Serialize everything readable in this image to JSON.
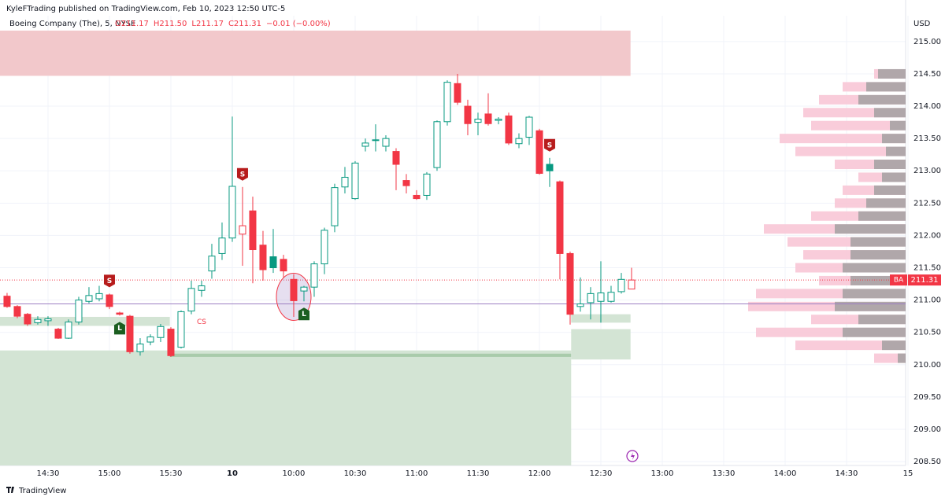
{
  "chart_data": {
    "type": "candlestick",
    "publisher": "KyleFTrading published on TradingView.com, Feb 10, 2023 12:50 UTC-5",
    "symbol": "Boeing Company (The), 5, NYSE",
    "ohlc_labels": [
      "O211.17",
      "H211.50",
      "L211.17",
      "C211.31",
      "−0.01 (−0.00%)"
    ],
    "currency": "USD",
    "ticker": "BA",
    "last_price": 211.31,
    "footer": "TradingView",
    "open": [
      211.06,
      210.9,
      210.78,
      210.65,
      210.68,
      210.55,
      210.41,
      210.66,
      210.98,
      211.02,
      211.08,
      210.8,
      210.75,
      210.2,
      210.35,
      210.42,
      210.55,
      210.27,
      210.83,
      211.15,
      211.45,
      211.72,
      211.96,
      212.02,
      212.38,
      211.85,
      211.67,
      211.63,
      211.32,
      211.14,
      211.2,
      211.56,
      212.15,
      212.75,
      212.57,
      213.38,
      213.47,
      213.38,
      213.3,
      212.85,
      212.62,
      212.62,
      213.05,
      213.76,
      214.35,
      214.0,
      213.75,
      213.88,
      213.78,
      213.85,
      213.42,
      213.52,
      213.62,
      213.1,
      212.83,
      211.72,
      210.9,
      210.96,
      210.98,
      210.98,
      211.13,
      211.17
    ],
    "high": [
      211.11,
      210.92,
      210.8,
      210.75,
      210.75,
      210.57,
      210.7,
      211.05,
      211.2,
      211.22,
      211.1,
      210.82,
      210.77,
      210.41,
      210.47,
      210.63,
      210.58,
      210.84,
      211.3,
      211.3,
      211.87,
      212.2,
      213.84,
      212.75,
      212.6,
      212.07,
      212.1,
      211.7,
      211.4,
      211.22,
      211.6,
      212.12,
      212.8,
      213.06,
      213.15,
      213.5,
      213.72,
      213.55,
      213.35,
      212.95,
      212.7,
      212.98,
      213.78,
      214.4,
      214.5,
      214.1,
      213.9,
      214.2,
      213.83,
      213.9,
      213.58,
      213.85,
      213.65,
      213.2,
      212.85,
      211.75,
      211.35,
      211.2,
      211.6,
      211.22,
      211.42,
      211.5
    ],
    "low": [
      210.88,
      210.72,
      210.6,
      210.62,
      210.6,
      210.4,
      210.4,
      210.62,
      210.95,
      210.98,
      210.86,
      210.76,
      210.17,
      210.14,
      210.3,
      210.35,
      210.12,
      210.25,
      210.78,
      211.05,
      211.33,
      211.62,
      211.9,
      211.53,
      211.26,
      211.3,
      211.42,
      211.35,
      210.74,
      210.98,
      211.05,
      211.4,
      212.05,
      212.65,
      212.55,
      213.3,
      213.3,
      213.3,
      212.7,
      212.65,
      212.55,
      212.55,
      213.0,
      213.7,
      214.02,
      213.55,
      213.55,
      213.7,
      213.72,
      213.4,
      213.35,
      213.4,
      212.94,
      212.75,
      211.32,
      210.62,
      210.82,
      210.7,
      210.65,
      210.96,
      211.1,
      211.17
    ],
    "close": [
      210.9,
      210.75,
      210.63,
      210.7,
      210.71,
      210.41,
      210.66,
      211.0,
      211.07,
      211.1,
      210.9,
      210.78,
      210.2,
      210.32,
      210.43,
      210.59,
      210.14,
      210.82,
      211.18,
      211.22,
      211.68,
      211.96,
      212.76,
      212.15,
      211.78,
      211.47,
      211.5,
      211.45,
      210.99,
      211.2,
      211.56,
      212.08,
      212.74,
      212.9,
      213.12,
      213.43,
      213.48,
      213.5,
      213.1,
      212.77,
      212.57,
      212.95,
      213.76,
      214.37,
      214.06,
      213.73,
      213.8,
      213.73,
      213.8,
      213.43,
      213.5,
      213.83,
      212.96,
      213.0,
      211.72,
      210.78,
      210.94,
      211.1,
      211.11,
      211.12,
      211.32,
      211.31
    ],
    "colors": {
      "up": "#089981",
      "down": "#f23645"
    },
    "xlim": [
      -0.69,
      87.77
    ],
    "xticks": [
      {
        "value": 4,
        "label": "14:30"
      },
      {
        "value": 10,
        "label": "15:00"
      },
      {
        "value": 16,
        "label": "15:30"
      },
      {
        "value": 22,
        "label": "10"
      },
      {
        "value": 28,
        "label": "10:00"
      },
      {
        "value": 34,
        "label": "10:30"
      },
      {
        "value": 40,
        "label": "11:00"
      },
      {
        "value": 46,
        "label": "11:30"
      },
      {
        "value": 52,
        "label": "12:00"
      },
      {
        "value": 58,
        "label": "12:30"
      },
      {
        "value": 64,
        "label": "13:00"
      },
      {
        "value": 70,
        "label": "13:30"
      },
      {
        "value": 76,
        "label": "14:00"
      },
      {
        "value": 82,
        "label": "14:30"
      },
      {
        "value": 88,
        "label": "15"
      }
    ],
    "ylim": [
      208.44,
      215.4
    ],
    "yticks": [
      {
        "value": 208.5,
        "label": "208.50"
      },
      {
        "value": 209,
        "label": "209.00"
      },
      {
        "value": 209.5,
        "label": "209.50"
      },
      {
        "value": 210,
        "label": "210.00"
      },
      {
        "value": 210.5,
        "label": "210.50"
      },
      {
        "value": 211,
        "label": "211.00"
      },
      {
        "value": 211.5,
        "label": "211.50"
      },
      {
        "value": 212,
        "label": "212.00"
      },
      {
        "value": 212.5,
        "label": "212.50"
      },
      {
        "value": 213,
        "label": "213.00"
      },
      {
        "value": 213.5,
        "label": "213.50"
      },
      {
        "value": 214,
        "label": "214.00"
      },
      {
        "value": 214.5,
        "label": "214.50"
      },
      {
        "value": 215,
        "label": "215.00"
      }
    ],
    "grid": true,
    "zones": [
      {
        "from": 214.47,
        "to": 215.17,
        "start": -0.69,
        "end": 60.9,
        "color": "#f2c8cb"
      },
      {
        "from": 210.6,
        "to": 210.74,
        "start": -0.69,
        "end": 15.9,
        "color": "#d3e4d4"
      },
      {
        "from": 208.44,
        "to": 210.22,
        "start": -0.69,
        "end": 55.1,
        "color": "#d3e4d4"
      },
      {
        "from": 210.12,
        "to": 210.17,
        "start": 15.9,
        "end": 55.1,
        "color": "#a9cbab"
      },
      {
        "from": 210.65,
        "to": 210.78,
        "start": 55.1,
        "end": 60.9,
        "color": "#d3e4d4"
      },
      {
        "from": 210.08,
        "to": 210.55,
        "start": 55.1,
        "end": 60.9,
        "color": "#d3e4d4"
      }
    ],
    "lines": [
      {
        "price": 210.94,
        "color": "#9c7fc2"
      },
      {
        "price": 211.31,
        "color": "#f23645",
        "dash": true
      }
    ],
    "signals": [
      {
        "label": "S",
        "bar": 10
      },
      {
        "label": "L",
        "bar": 11
      },
      {
        "label": "S",
        "bar": 23
      },
      {
        "label": "L",
        "bar": 29
      },
      {
        "label": "S",
        "bar": 53
      }
    ],
    "annotation": {
      "label": "CS",
      "bar": 19,
      "price": 210.66
    },
    "volume_profile": {
      "prices": [
        214.5,
        214.3,
        214.1,
        213.9,
        213.7,
        213.5,
        213.3,
        213.1,
        212.9,
        212.7,
        212.5,
        212.3,
        212.1,
        211.9,
        211.7,
        211.5,
        211.3,
        211.1,
        210.9,
        210.7,
        210.5,
        210.3,
        210.1
      ],
      "total": [
        40,
        80,
        110,
        130,
        120,
        160,
        140,
        90,
        60,
        80,
        90,
        120,
        180,
        150,
        130,
        140,
        110,
        190,
        200,
        120,
        190,
        140,
        40
      ],
      "sell": [
        35,
        50,
        60,
        40,
        20,
        30,
        25,
        40,
        30,
        40,
        50,
        60,
        90,
        70,
        70,
        80,
        70,
        80,
        90,
        60,
        80,
        30,
        10
      ]
    }
  }
}
